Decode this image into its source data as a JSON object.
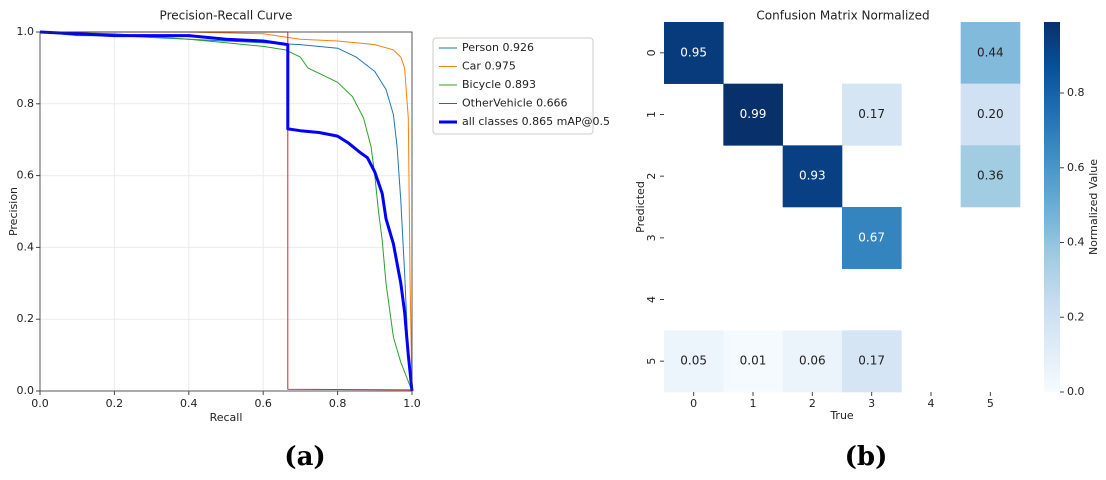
{
  "chart_data": [
    {
      "type": "line",
      "title": "Precision-Recall Curve",
      "xlabel": "Recall",
      "ylabel": "Precision",
      "xlim": [
        0,
        1
      ],
      "ylim": [
        0,
        1
      ],
      "xticks": [
        {
          "value": 0,
          "label": "0.0"
        },
        0.2,
        0.4,
        0.6,
        0.8,
        {
          "value": 1,
          "label": "1.0"
        }
      ],
      "yticks": [
        {
          "value": 0,
          "label": "0.0"
        },
        0.2,
        0.4,
        0.6,
        0.8,
        {
          "value": 1,
          "label": "1.0"
        }
      ],
      "grid": true,
      "legend": "outside upper right",
      "caption": "(a)",
      "series": [
        {
          "name": "Person 0.926",
          "color": "#1f77b4",
          "linewidth": 1,
          "x": [
            0,
            0.1,
            0.2,
            0.4,
            0.6,
            0.7,
            0.8,
            0.85,
            0.9,
            0.93,
            0.95,
            0.96,
            0.97,
            0.98,
            0.99,
            1.0
          ],
          "values": [
            1.0,
            0.99,
            0.99,
            0.98,
            0.97,
            0.965,
            0.955,
            0.93,
            0.89,
            0.84,
            0.77,
            0.68,
            0.53,
            0.33,
            0.1,
            0
          ]
        },
        {
          "name": "Car 0.975",
          "color": "#ff7f0e",
          "linewidth": 1,
          "x": [
            0,
            0.2,
            0.4,
            0.6,
            0.7,
            0.8,
            0.85,
            0.9,
            0.95,
            0.97,
            0.98,
            0.99,
            0.995,
            1.0
          ],
          "values": [
            1,
            1,
            1,
            0.995,
            0.98,
            0.975,
            0.97,
            0.965,
            0.95,
            0.93,
            0.9,
            0.76,
            0.3,
            0
          ]
        },
        {
          "name": "Bicycle 0.893",
          "color": "#2ca02c",
          "linewidth": 1,
          "x": [
            0,
            0.2,
            0.4,
            0.5,
            0.6,
            0.66,
            0.7,
            0.72,
            0.76,
            0.8,
            0.84,
            0.87,
            0.89,
            0.9,
            0.91,
            0.92,
            0.93,
            0.95,
            0.97,
            1.0
          ],
          "values": [
            1,
            0.995,
            0.98,
            0.97,
            0.96,
            0.95,
            0.93,
            0.9,
            0.88,
            0.86,
            0.82,
            0.76,
            0.68,
            0.6,
            0.5,
            0.42,
            0.3,
            0.15,
            0.08,
            0
          ]
        },
        {
          "name": "OtherVehicle 0.666",
          "color": "#d62728",
          "linewidth": 1,
          "x": [
            0,
            0.666,
            0.666,
            1.0,
            1.0
          ],
          "values": [
            1,
            1,
            0.005,
            0.003,
            0
          ]
        },
        {
          "name": "all classes 0.865 mAP@0.5",
          "color": "#0000ff",
          "linewidth": 3,
          "x": [
            0,
            0.2,
            0.4,
            0.5,
            0.6,
            0.666,
            0.666,
            0.7,
            0.75,
            0.8,
            0.83,
            0.86,
            0.88,
            0.9,
            0.92,
            0.93,
            0.95,
            0.97,
            0.98,
            0.99,
            1.0
          ],
          "values": [
            1,
            0.99,
            0.99,
            0.98,
            0.975,
            0.965,
            0.73,
            0.725,
            0.72,
            0.71,
            0.69,
            0.665,
            0.65,
            0.61,
            0.55,
            0.48,
            0.41,
            0.3,
            0.22,
            0.1,
            0
          ]
        }
      ]
    },
    {
      "type": "heatmap",
      "title": "Confusion Matrix Normalized",
      "xlabel": "True",
      "ylabel": "Predicted",
      "categories": [
        "0",
        "1",
        "2",
        "3",
        "4",
        "5"
      ],
      "y_categories": [
        "0",
        "1",
        "2",
        "3",
        "4",
        "5"
      ],
      "values": [
        [
          0.95,
          null,
          null,
          null,
          null,
          0.44
        ],
        [
          null,
          0.99,
          null,
          0.17,
          null,
          0.2
        ],
        [
          null,
          null,
          0.93,
          null,
          null,
          0.36
        ],
        [
          null,
          null,
          null,
          0.67,
          null,
          null
        ],
        [
          null,
          null,
          null,
          null,
          null,
          null
        ],
        [
          0.05,
          0.01,
          0.06,
          0.17,
          null,
          null
        ]
      ],
      "value_labels": [
        [
          "0.95",
          null,
          null,
          null,
          null,
          "0.44"
        ],
        [
          null,
          "0.99",
          null,
          "0.17",
          null,
          "0.20"
        ],
        [
          null,
          null,
          "0.93",
          null,
          null,
          "0.36"
        ],
        [
          null,
          null,
          null,
          "0.67",
          null,
          null
        ],
        [
          null,
          null,
          null,
          null,
          null,
          null
        ],
        [
          "0.05",
          "0.01",
          "0.06",
          "0.17",
          null,
          null
        ]
      ],
      "colormap": "Blues",
      "zlim": [
        0,
        0.99
      ],
      "colorbar_label": "Normalized Value",
      "colorbar_ticks": [
        {
          "value": 0,
          "label": "0.0"
        },
        0.2,
        0.4,
        0.6,
        0.8
      ],
      "caption": "(b)"
    }
  ]
}
